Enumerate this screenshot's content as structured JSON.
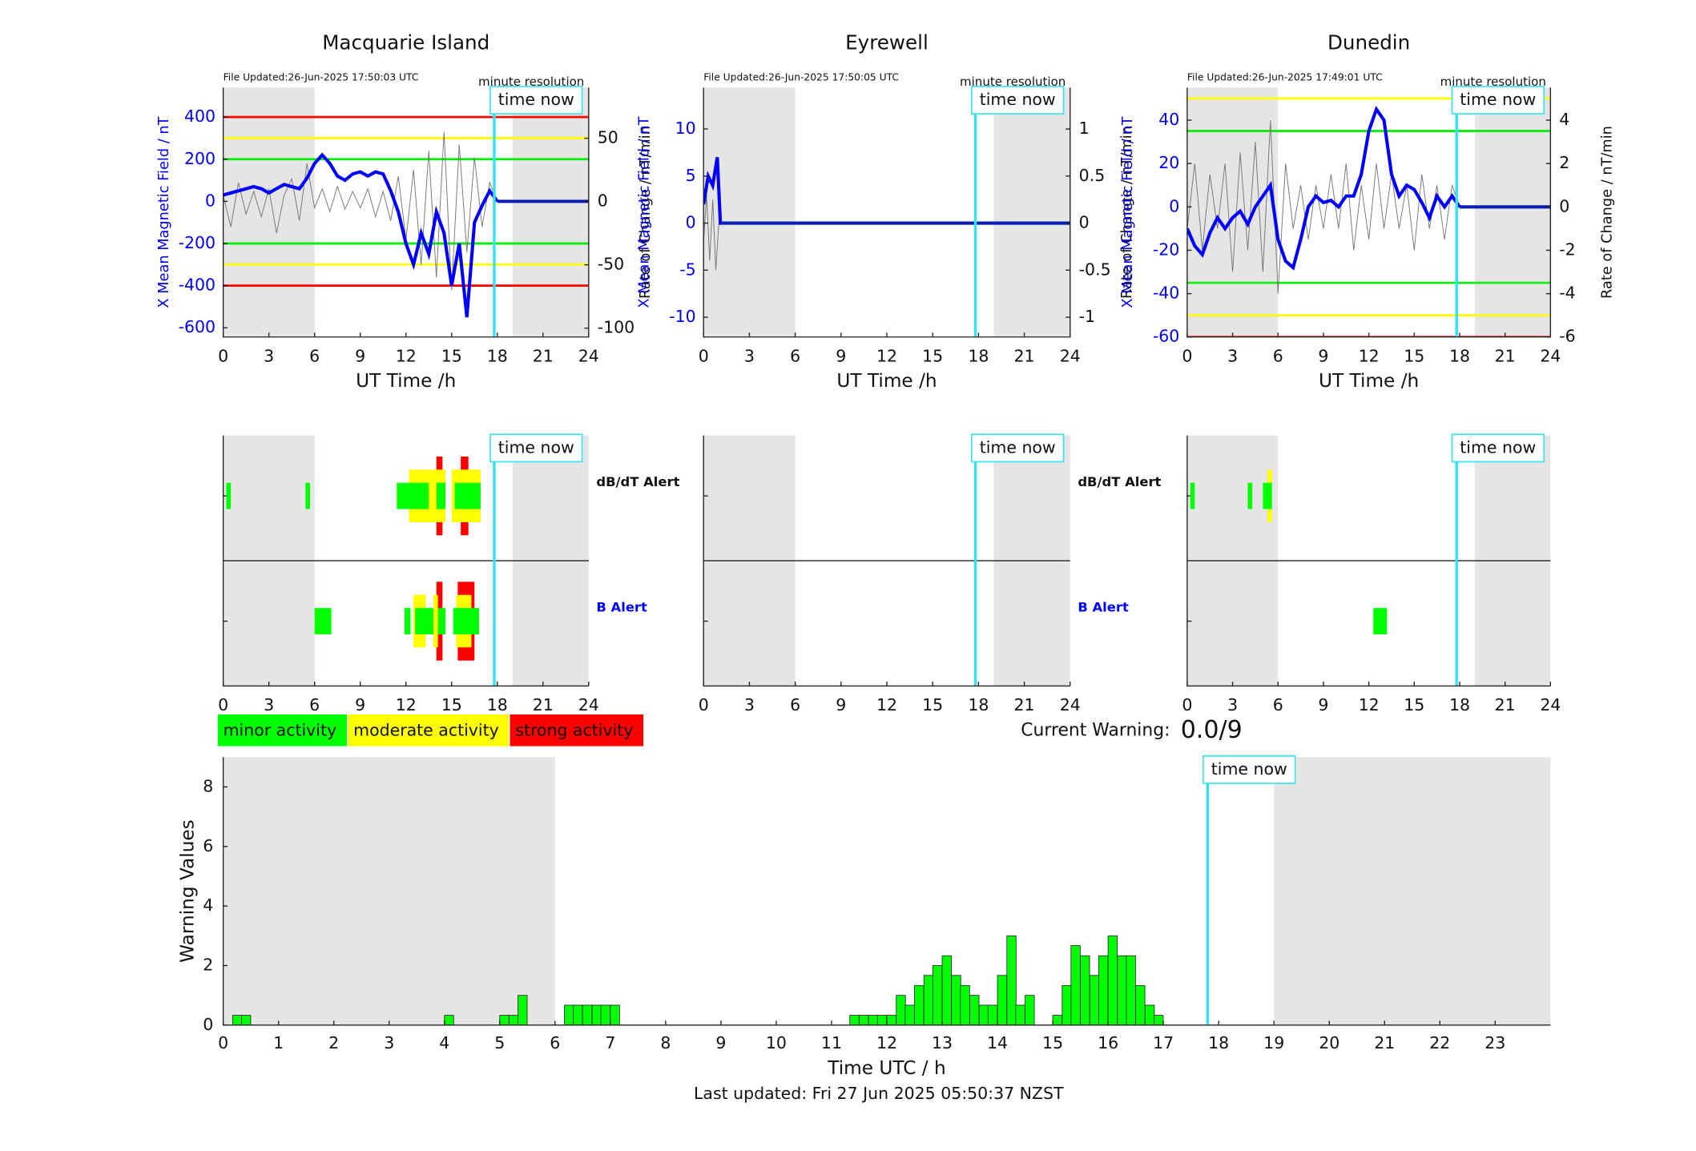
{
  "chart_data": [
    {
      "type": "line",
      "title": "Macquarie Island",
      "note": "File Updated:26-Jun-2025 17:50:03 UTC",
      "resolution": "minute resolution",
      "time_now_label": "time now",
      "time_now": 17.8,
      "xlabel": "UT Time /h",
      "ylabel": "X Mean Magnetic Field / nT",
      "y2label": "Rate of Change / nT/min",
      "xlim": [
        0,
        24
      ],
      "xticks": [
        0,
        3,
        6,
        9,
        12,
        15,
        18,
        21,
        24
      ],
      "ylim": [
        -644,
        540
      ],
      "yticks": [
        -600,
        -400,
        -200,
        0,
        200,
        400
      ],
      "y2lim": [
        -107,
        90
      ],
      "y2ticks": [
        -100,
        -50,
        0,
        50
      ],
      "shaded": [
        [
          0,
          6
        ],
        [
          19,
          24
        ]
      ],
      "thresholds": [
        {
          "color": "#ff0000",
          "values": [
            400,
            -400
          ]
        },
        {
          "color": "#ffff00",
          "values": [
            300,
            -300
          ]
        },
        {
          "color": "#00ee00",
          "values": [
            200,
            -200
          ]
        }
      ],
      "series": [
        {
          "axis": "y2",
          "color": "#777777",
          "x": [
            0,
            0.5,
            1,
            1.5,
            2,
            2.5,
            3,
            3.5,
            4,
            4.5,
            5,
            5.5,
            6,
            6.5,
            7,
            7.5,
            8,
            8.5,
            9,
            9.5,
            10,
            10.5,
            11,
            11.5,
            12,
            12.5,
            13,
            13.5,
            14,
            14.5,
            15,
            15.5,
            16,
            16.5,
            17,
            17.5,
            18
          ],
          "values": [
            5,
            -20,
            15,
            -10,
            8,
            -12,
            10,
            -25,
            5,
            18,
            -15,
            30,
            -5,
            10,
            -8,
            12,
            -6,
            8,
            -5,
            10,
            -12,
            8,
            -15,
            20,
            -30,
            25,
            -50,
            40,
            -60,
            55,
            -70,
            45,
            -40,
            35,
            -20,
            15,
            0
          ]
        },
        {
          "axis": "y",
          "color": "#0000ff",
          "x": [
            0,
            0.5,
            1,
            1.5,
            2,
            2.5,
            3,
            3.5,
            4,
            4.5,
            5,
            5.5,
            6,
            6.5,
            7,
            7.5,
            8,
            8.5,
            9,
            9.5,
            10,
            10.5,
            11,
            11.5,
            12,
            12.5,
            13,
            13.5,
            14,
            14.5,
            15,
            15.5,
            16,
            16.5,
            17,
            17.5,
            18
          ],
          "values": [
            30,
            40,
            50,
            60,
            70,
            60,
            40,
            60,
            80,
            70,
            60,
            110,
            180,
            220,
            180,
            120,
            100,
            130,
            140,
            120,
            140,
            130,
            50,
            -50,
            -200,
            -300,
            -150,
            -250,
            -50,
            -150,
            -400,
            -200,
            -550,
            -100,
            -20,
            50,
            0
          ]
        },
        {
          "axis": "y",
          "color": "#0a1fb0",
          "x": [
            18,
            24
          ],
          "values": [
            0,
            0
          ]
        }
      ]
    },
    {
      "type": "line",
      "title": "Eyrewell",
      "note": "File Updated:26-Jun-2025 17:50:05 UTC",
      "resolution": "minute resolution",
      "time_now_label": "time now",
      "time_now": 17.8,
      "xlabel": "UT Time /h",
      "ylabel": "X Mean Magnetic Field / nT",
      "y2label": "Rate of Change / nT/min",
      "xlim": [
        0,
        24
      ],
      "xticks": [
        0,
        3,
        6,
        9,
        12,
        15,
        18,
        21,
        24
      ],
      "ylim": [
        -12.1,
        14.4
      ],
      "yticks": [
        -10,
        -5,
        0,
        5,
        10
      ],
      "y2lim": [
        -1.21,
        1.44
      ],
      "y2ticks": [
        -1,
        -0.5,
        0,
        0.5,
        1
      ],
      "shaded": [
        [
          0,
          6
        ],
        [
          19,
          24
        ]
      ],
      "thresholds": [],
      "series": [
        {
          "axis": "y2",
          "color": "#777777",
          "x": [
            0,
            0.2,
            0.4,
            0.6,
            0.8,
            1.0
          ],
          "values": [
            -0.2,
            0.3,
            -0.4,
            0.25,
            -0.5,
            0
          ]
        },
        {
          "axis": "y",
          "color": "#0000ff",
          "x": [
            0,
            0.3,
            0.6,
            0.9,
            1.1,
            1.2
          ],
          "values": [
            2,
            5,
            4,
            7,
            0,
            0
          ]
        },
        {
          "axis": "y",
          "color": "#0a1fb0",
          "x": [
            1.2,
            24
          ],
          "values": [
            0,
            0
          ]
        }
      ]
    },
    {
      "type": "line",
      "title": "Dunedin",
      "note": "File Updated:26-Jun-2025 17:49:01 UTC",
      "resolution": "minute resolution",
      "time_now_label": "time now",
      "time_now": 17.8,
      "xlabel": "UT Time /h",
      "ylabel": "X Mean Magnetic Field / nT",
      "y2label": "Rate of Change / nT/min",
      "xlim": [
        0,
        24
      ],
      "xticks": [
        0,
        3,
        6,
        9,
        12,
        15,
        18,
        21,
        24
      ],
      "ylim": [
        -60,
        55
      ],
      "yticks": [
        -60,
        -40,
        -20,
        0,
        20,
        40
      ],
      "y2lim": [
        -6,
        5.5
      ],
      "y2ticks": [
        -6,
        -4,
        -2,
        0,
        2,
        4
      ],
      "shaded": [
        [
          0,
          6
        ],
        [
          19,
          24
        ]
      ],
      "thresholds": [
        {
          "color": "#ff0000",
          "values": [
            -60
          ]
        },
        {
          "color": "#ffff00",
          "values": [
            50,
            -50
          ]
        },
        {
          "color": "#00ee00",
          "values": [
            35,
            -35
          ]
        }
      ],
      "series": [
        {
          "axis": "y2",
          "color": "#777777",
          "x": [
            0,
            0.5,
            1,
            1.5,
            2,
            2.5,
            3,
            3.5,
            4,
            4.5,
            5,
            5.5,
            6,
            6.5,
            7,
            7.5,
            8,
            8.5,
            9,
            9.5,
            10,
            10.5,
            11,
            11.5,
            12,
            12.5,
            13,
            13.5,
            14,
            14.5,
            15,
            15.5,
            16,
            16.5,
            17,
            17.5,
            18
          ],
          "values": [
            -1,
            2,
            -2,
            1.5,
            -1,
            2,
            -3,
            2.5,
            -2,
            3,
            -3,
            4,
            -4,
            2,
            -1,
            1,
            -1.5,
            1,
            -1,
            1.5,
            -1,
            2,
            -2,
            1,
            -1.5,
            2,
            -1,
            1.5,
            -1,
            1,
            -2,
            1.5,
            -1,
            1,
            -1.5,
            1,
            0
          ]
        },
        {
          "axis": "y",
          "color": "#0000ff",
          "x": [
            0,
            0.5,
            1,
            1.5,
            2,
            2.5,
            3,
            3.5,
            4,
            4.5,
            5,
            5.5,
            6,
            6.5,
            7,
            7.5,
            8,
            8.5,
            9,
            9.5,
            10,
            10.5,
            11,
            11.5,
            12,
            12.5,
            13,
            13.5,
            14,
            14.5,
            15,
            15.5,
            16,
            16.5,
            17,
            17.5,
            18
          ],
          "values": [
            -10,
            -18,
            -22,
            -12,
            -5,
            -10,
            -5,
            -2,
            -8,
            0,
            5,
            10,
            -15,
            -25,
            -28,
            -15,
            0,
            5,
            2,
            3,
            0,
            5,
            5,
            15,
            35,
            45,
            40,
            15,
            5,
            10,
            8,
            2,
            -5,
            5,
            0,
            5,
            0
          ]
        },
        {
          "axis": "y",
          "color": "#0a1fb0",
          "x": [
            18,
            24
          ],
          "values": [
            0,
            0
          ]
        }
      ]
    },
    {
      "type": "alert",
      "time_now_label": "time now",
      "time_now": 17.8,
      "xlim": [
        0,
        24
      ],
      "xticks": [
        0,
        3,
        6,
        9,
        12,
        15,
        18,
        21,
        24
      ],
      "shaded": [
        [
          0,
          6
        ],
        [
          19,
          24
        ]
      ],
      "rows": [
        {
          "label": "dB/dT Alert",
          "label_color": "#111111",
          "blocks": [
            {
              "x": [
                14.0,
                14.4
              ],
              "color": "#ff0000"
            },
            {
              "x": [
                15.6,
                16.1
              ],
              "color": "#ff0000"
            },
            {
              "x": [
                12.2,
                13.8
              ],
              "color": "#ffff00"
            },
            {
              "x": [
                13.8,
                14.6
              ],
              "color": "#ffff00"
            },
            {
              "x": [
                15.0,
                16.9
              ],
              "color": "#ffff00"
            },
            {
              "x": [
                0.2,
                0.5
              ],
              "color": "#00ff00"
            },
            {
              "x": [
                5.4,
                5.7
              ],
              "color": "#00ff00"
            },
            {
              "x": [
                11.4,
                13.5
              ],
              "color": "#00ff00"
            },
            {
              "x": [
                14.0,
                14.6
              ],
              "color": "#00ff00"
            },
            {
              "x": [
                15.2,
                16.9
              ],
              "color": "#00ff00"
            }
          ]
        },
        {
          "label": "B Alert",
          "label_color": "#0000ff",
          "blocks": [
            {
              "x": [
                14.0,
                14.4
              ],
              "color": "#ff0000"
            },
            {
              "x": [
                15.4,
                16.5
              ],
              "color": "#ff0000"
            },
            {
              "x": [
                12.5,
                13.3
              ],
              "color": "#ffff00"
            },
            {
              "x": [
                13.8,
                14.1
              ],
              "color": "#ffff00"
            },
            {
              "x": [
                15.3,
                16.3
              ],
              "color": "#ffff00"
            },
            {
              "x": [
                6.0,
                7.1
              ],
              "color": "#00ff00"
            },
            {
              "x": [
                11.9,
                12.3
              ],
              "color": "#00ff00"
            },
            {
              "x": [
                12.6,
                13.8
              ],
              "color": "#00ff00"
            },
            {
              "x": [
                14.1,
                14.6
              ],
              "color": "#00ff00"
            },
            {
              "x": [
                15.1,
                16.8
              ],
              "color": "#00ff00"
            }
          ]
        }
      ]
    },
    {
      "type": "alert",
      "time_now_label": "time now",
      "time_now": 17.8,
      "xlim": [
        0,
        24
      ],
      "xticks": [
        0,
        3,
        6,
        9,
        12,
        15,
        18,
        21,
        24
      ],
      "shaded": [
        [
          0,
          6
        ],
        [
          19,
          24
        ]
      ],
      "rows": [
        {
          "label": "dB/dT Alert",
          "label_color": "#111111",
          "blocks": []
        },
        {
          "label": "B Alert",
          "label_color": "#0000ff",
          "blocks": []
        }
      ]
    },
    {
      "type": "alert",
      "time_now_label": "time now",
      "time_now": 17.8,
      "xlim": [
        0,
        24
      ],
      "xticks": [
        0,
        3,
        6,
        9,
        12,
        15,
        18,
        21,
        24
      ],
      "shaded": [
        [
          0,
          6
        ],
        [
          19,
          24
        ]
      ],
      "rows": [
        {
          "blocks": [
            {
              "x": [
                5.3,
                5.6
              ],
              "color": "#ffff00"
            },
            {
              "x": [
                0.2,
                0.5
              ],
              "color": "#00ff00"
            },
            {
              "x": [
                4.0,
                4.3
              ],
              "color": "#00ff00"
            },
            {
              "x": [
                5.0,
                5.6
              ],
              "color": "#00ff00"
            }
          ]
        },
        {
          "blocks": [
            {
              "x": [
                12.3,
                13.2
              ],
              "color": "#00ff00"
            }
          ]
        }
      ]
    },
    {
      "type": "bar",
      "time_now_label": "time now",
      "time_now": 17.8,
      "xlabel": "Time UTC / h",
      "ylabel": "Warning Values",
      "color": "#00ff00",
      "xlim": [
        0,
        24
      ],
      "xticks": [
        0,
        1,
        2,
        3,
        4,
        5,
        6,
        7,
        8,
        9,
        10,
        11,
        12,
        13,
        14,
        15,
        16,
        17,
        18,
        19,
        20,
        21,
        22,
        23
      ],
      "ylim": [
        0,
        9
      ],
      "yticks": [
        0,
        2,
        4,
        6,
        8
      ],
      "shaded": [
        [
          0,
          6
        ],
        [
          19,
          24
        ]
      ],
      "bin_width": 0.1667,
      "x": [
        0.17,
        0.33,
        4.0,
        5.0,
        5.17,
        5.33,
        6.17,
        6.33,
        6.5,
        6.67,
        6.83,
        7.0,
        11.33,
        11.5,
        11.67,
        11.83,
        12.0,
        12.17,
        12.33,
        12.5,
        12.67,
        12.83,
        13.0,
        13.17,
        13.33,
        13.5,
        13.67,
        13.83,
        14.0,
        14.17,
        14.33,
        14.5,
        15.0,
        15.17,
        15.33,
        15.5,
        15.67,
        15.83,
        16.0,
        16.17,
        16.33,
        16.5,
        16.67,
        16.83
      ],
      "values": [
        0.33,
        0.33,
        0.33,
        0.33,
        0.33,
        1,
        0.67,
        0.67,
        0.67,
        0.67,
        0.67,
        0.67,
        0.33,
        0.33,
        0.33,
        0.33,
        0.33,
        1,
        0.67,
        1.33,
        1.67,
        2,
        2.33,
        1.67,
        1.33,
        1,
        0.67,
        0.67,
        1.67,
        3,
        0.67,
        1,
        0.33,
        1.33,
        2.67,
        2.33,
        1.67,
        2.33,
        3,
        2.33,
        2.33,
        1.33,
        0.67,
        0.33
      ]
    }
  ],
  "legend": [
    {
      "name": "minor activity",
      "color": "#00ff00"
    },
    {
      "name": "moderate activity",
      "color": "#ffff00"
    },
    {
      "name": "strong activity",
      "color": "#ff0000"
    }
  ],
  "status": {
    "label": "Current Warning:",
    "value": "0.0/9"
  },
  "footer": "Last updated: Fri 27 Jun 2025 05:50:37 NZST"
}
